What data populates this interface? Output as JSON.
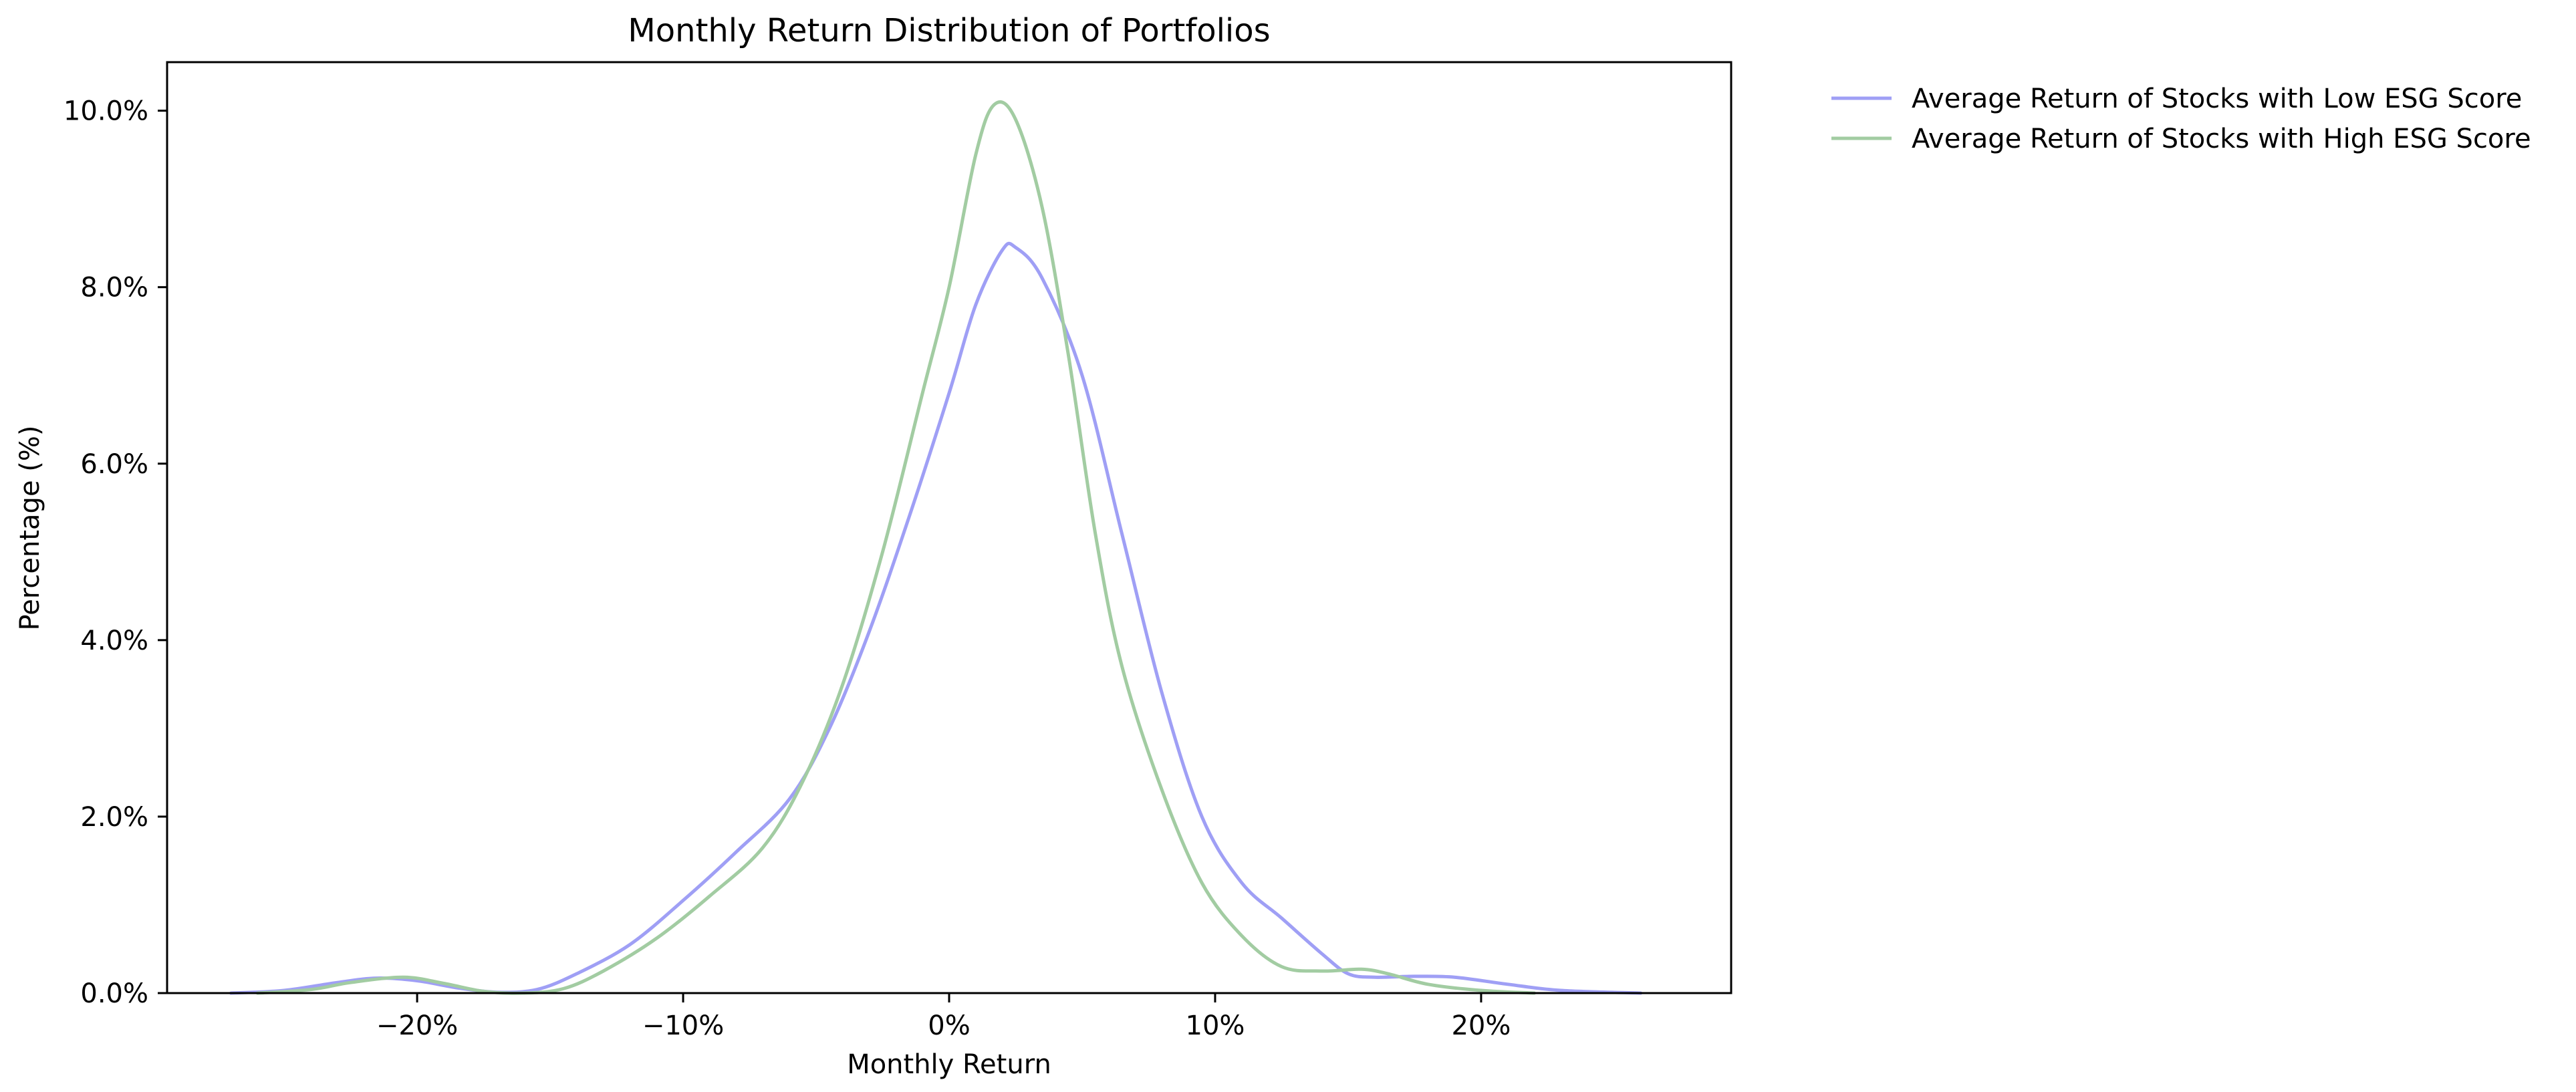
{
  "chart_data": {
    "type": "line",
    "title": "Monthly Return Distribution of Portfolios",
    "xlabel": "Monthly Return",
    "ylabel": "Percentage (%)",
    "xlim": [
      -0.294,
      0.294
    ],
    "ylim": [
      0,
      0.1055
    ],
    "x_ticks": [
      {
        "value": -0.2,
        "label": "−20%"
      },
      {
        "value": -0.1,
        "label": "−10%"
      },
      {
        "value": 0.0,
        "label": "0%"
      },
      {
        "value": 0.1,
        "label": "10%"
      },
      {
        "value": 0.2,
        "label": "20%"
      }
    ],
    "y_ticks": [
      {
        "value": 0.0,
        "label": "0.0%"
      },
      {
        "value": 0.02,
        "label": "2.0%"
      },
      {
        "value": 0.04,
        "label": "4.0%"
      },
      {
        "value": 0.06,
        "label": "6.0%"
      },
      {
        "value": 0.08,
        "label": "8.0%"
      },
      {
        "value": 0.1,
        "label": "10.0%"
      }
    ],
    "grid": false,
    "legend_position": "outside-top-right",
    "series": [
      {
        "name": "Average Return of Stocks with Low ESG Score",
        "color": "#9f9ff5",
        "points": [
          [
            -0.27,
            0.0
          ],
          [
            -0.25,
            0.0003
          ],
          [
            -0.23,
            0.0012
          ],
          [
            -0.215,
            0.0017
          ],
          [
            -0.2,
            0.0014
          ],
          [
            -0.185,
            0.0006
          ],
          [
            -0.17,
            0.0001
          ],
          [
            -0.155,
            0.0004
          ],
          [
            -0.14,
            0.0022
          ],
          [
            -0.12,
            0.0055
          ],
          [
            -0.1,
            0.0105
          ],
          [
            -0.08,
            0.016
          ],
          [
            -0.06,
            0.022
          ],
          [
            -0.045,
            0.03
          ],
          [
            -0.03,
            0.041
          ],
          [
            -0.015,
            0.054
          ],
          [
            0.0,
            0.068
          ],
          [
            0.01,
            0.078
          ],
          [
            0.02,
            0.0842
          ],
          [
            0.025,
            0.0845
          ],
          [
            0.035,
            0.081
          ],
          [
            0.05,
            0.07
          ],
          [
            0.065,
            0.052
          ],
          [
            0.08,
            0.034
          ],
          [
            0.095,
            0.02
          ],
          [
            0.11,
            0.0125
          ],
          [
            0.125,
            0.0085
          ],
          [
            0.14,
            0.0045
          ],
          [
            0.15,
            0.0022
          ],
          [
            0.16,
            0.0018
          ],
          [
            0.175,
            0.0019
          ],
          [
            0.19,
            0.0018
          ],
          [
            0.21,
            0.001
          ],
          [
            0.23,
            0.0003
          ],
          [
            0.26,
            0.0
          ]
        ]
      },
      {
        "name": "Average Return of Stocks with High ESG Score",
        "color": "#a2cca2",
        "points": [
          [
            -0.26,
            0.0
          ],
          [
            -0.24,
            0.0004
          ],
          [
            -0.225,
            0.0012
          ],
          [
            -0.205,
            0.0018
          ],
          [
            -0.19,
            0.0011
          ],
          [
            -0.175,
            0.0002
          ],
          [
            -0.16,
            0.0
          ],
          [
            -0.145,
            0.0005
          ],
          [
            -0.13,
            0.0025
          ],
          [
            -0.11,
            0.0062
          ],
          [
            -0.09,
            0.011
          ],
          [
            -0.07,
            0.0165
          ],
          [
            -0.055,
            0.024
          ],
          [
            -0.04,
            0.035
          ],
          [
            -0.025,
            0.05
          ],
          [
            -0.01,
            0.068
          ],
          [
            0.0,
            0.08
          ],
          [
            0.01,
            0.095
          ],
          [
            0.017,
            0.1007
          ],
          [
            0.025,
            0.099
          ],
          [
            0.035,
            0.089
          ],
          [
            0.045,
            0.072
          ],
          [
            0.055,
            0.052
          ],
          [
            0.065,
            0.037
          ],
          [
            0.08,
            0.023
          ],
          [
            0.095,
            0.0125
          ],
          [
            0.11,
            0.0065
          ],
          [
            0.125,
            0.003
          ],
          [
            0.14,
            0.0025
          ],
          [
            0.155,
            0.0027
          ],
          [
            0.165,
            0.0022
          ],
          [
            0.18,
            0.001
          ],
          [
            0.2,
            0.0003
          ],
          [
            0.22,
            0.0
          ]
        ]
      }
    ]
  }
}
